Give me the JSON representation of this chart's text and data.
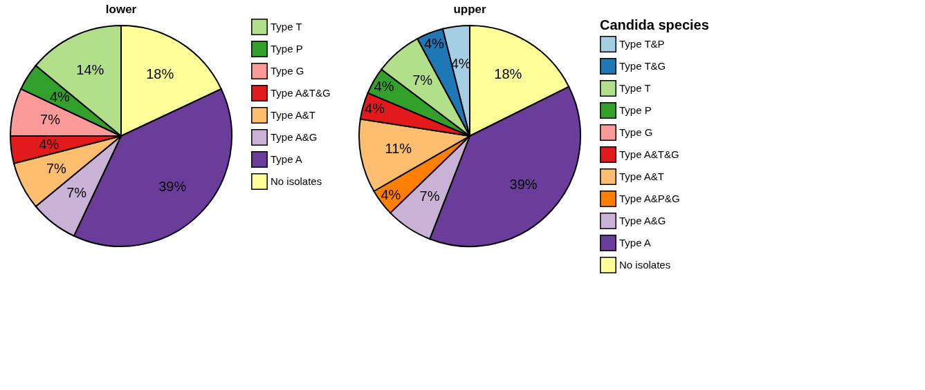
{
  "chart_data": [
    {
      "type": "pie",
      "title": "lower",
      "legend": "right",
      "categories": [
        "No isolates",
        "Type A",
        "Type A&G",
        "Type A&T",
        "Type A&T&G",
        "Type G",
        "Type P",
        "Type T"
      ],
      "values": [
        18,
        39,
        7,
        7,
        4,
        7,
        4,
        14
      ],
      "colors": [
        "#ffff99",
        "#6a3d9a",
        "#cab2d6",
        "#fdbf6f",
        "#e31a1c",
        "#fb9a99",
        "#33a02c",
        "#b2df8a"
      ],
      "value_labels": [
        "18%",
        "39%",
        "7%",
        "7%",
        "4%",
        "7%",
        "4%",
        "14%"
      ]
    },
    {
      "type": "pie",
      "title": "upper",
      "legend": "right",
      "legend_title": "Candida species",
      "categories": [
        "No isolates",
        "Type A",
        "Type A&G",
        "Type A&P&G",
        "Type A&T",
        "Type A&T&G",
        "Type G",
        "Type P",
        "Type T",
        "Type T&G",
        "Type T&P"
      ],
      "values": [
        18,
        39,
        7,
        4,
        11,
        4,
        null,
        4,
        7,
        4,
        4
      ],
      "colors": [
        "#ffff99",
        "#6a3d9a",
        "#cab2d6",
        "#ff7f00",
        "#fdbf6f",
        "#e31a1c",
        "#fb9a99",
        "#33a02c",
        "#b2df8a",
        "#1f78b4",
        "#a6cee3"
      ],
      "value_labels": [
        "18%",
        "39%",
        "7%",
        "4%",
        "11%",
        "4%",
        null,
        "4%",
        "7%",
        "4%",
        "4%"
      ]
    }
  ]
}
